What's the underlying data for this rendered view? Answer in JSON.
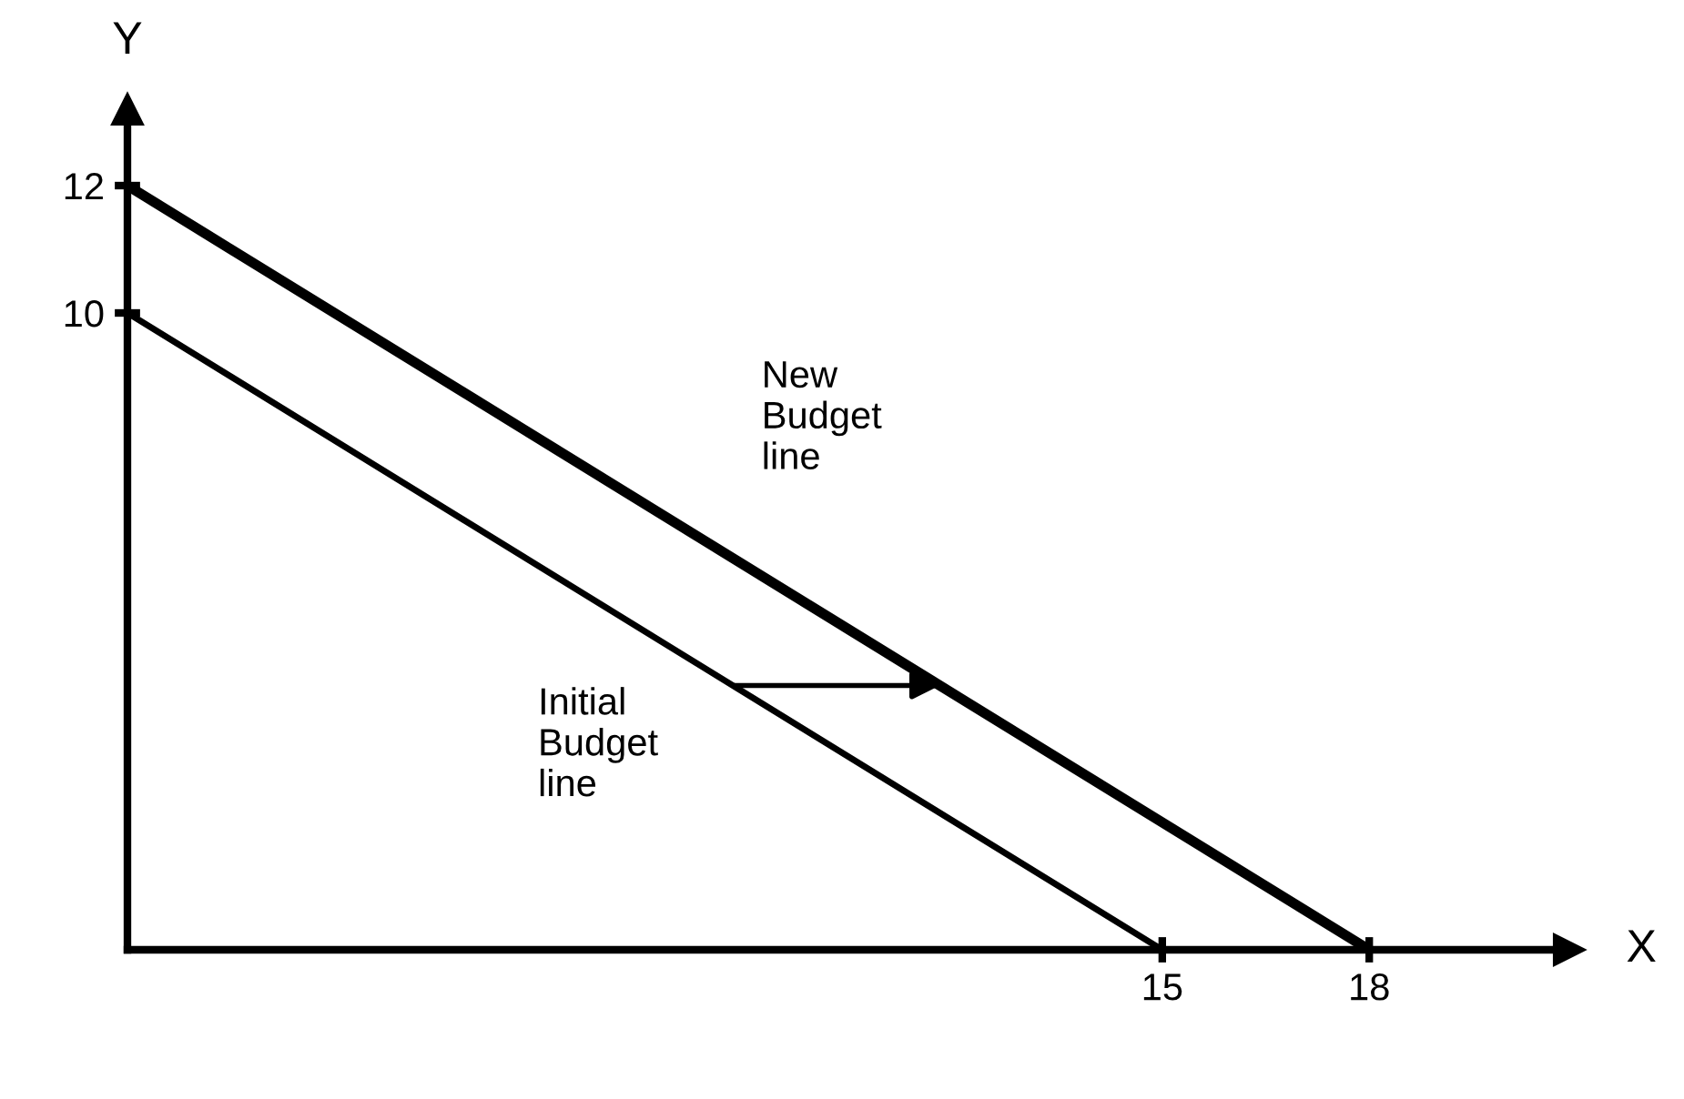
{
  "chart_data": {
    "type": "line",
    "xlabel": "X",
    "ylabel": "Y",
    "series": [
      {
        "name": "New\nBudget\nline",
        "color": "#000000",
        "x": [
          0,
          18
        ],
        "values": [
          12,
          0
        ]
      },
      {
        "name": "Initial\nBudget\nline",
        "color": "#000000",
        "x": [
          0,
          15
        ],
        "values": [
          10,
          0
        ]
      }
    ],
    "xlim": [
      0,
      20.9
    ],
    "ylim": [
      0,
      13.2
    ],
    "xticks": [
      15,
      18
    ],
    "yticks": [
      10,
      12
    ],
    "grid": false,
    "legend": false,
    "marker": "none",
    "line_style": "solid"
  }
}
